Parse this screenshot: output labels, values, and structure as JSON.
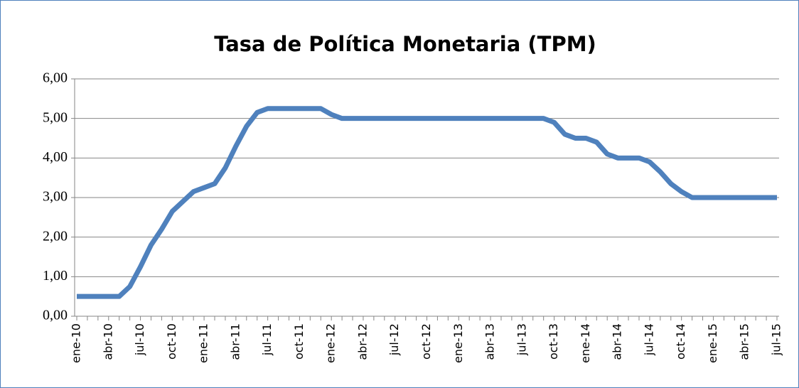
{
  "chart_data": {
    "type": "line",
    "title": "Tasa de Política Monetaria (TPM)",
    "categories": [
      "ene-10",
      null,
      null,
      "abr-10",
      null,
      null,
      "jul-10",
      null,
      null,
      "oct-10",
      null,
      null,
      "ene-11",
      null,
      null,
      "abr-11",
      null,
      null,
      "jul-11",
      null,
      null,
      "oct-11",
      null,
      null,
      "ene-12",
      null,
      null,
      "abr-12",
      null,
      null,
      "jul-12",
      null,
      null,
      "oct-12",
      null,
      null,
      "ene-13",
      null,
      null,
      "abr-13",
      null,
      null,
      "jul-13",
      null,
      null,
      "oct-13",
      null,
      null,
      "ene-14",
      null,
      null,
      "abr-14",
      null,
      null,
      "jul-14",
      null,
      null,
      "oct-14",
      null,
      null,
      "ene-15",
      null,
      null,
      "abr-15",
      null,
      null,
      "jul-15"
    ],
    "values": [
      0.5,
      0.5,
      0.5,
      0.5,
      0.5,
      0.75,
      1.25,
      1.8,
      2.2,
      2.65,
      2.9,
      3.15,
      3.25,
      3.35,
      3.75,
      4.3,
      4.8,
      5.15,
      5.25,
      5.25,
      5.25,
      5.25,
      5.25,
      5.25,
      5.1,
      5.0,
      5.0,
      5.0,
      5.0,
      5.0,
      5.0,
      5.0,
      5.0,
      5.0,
      5.0,
      5.0,
      5.0,
      5.0,
      5.0,
      5.0,
      5.0,
      5.0,
      5.0,
      5.0,
      5.0,
      4.9,
      4.6,
      4.5,
      4.5,
      4.4,
      4.1,
      4.0,
      4.0,
      4.0,
      3.9,
      3.65,
      3.35,
      3.15,
      3.0,
      3.0,
      3.0,
      3.0,
      3.0,
      3.0,
      3.0,
      3.0,
      3.0
    ],
    "color": "#4f81bd",
    "ylim": [
      0,
      6
    ],
    "yticks": [
      {
        "value": 0,
        "label": "0,00"
      },
      {
        "value": 1,
        "label": "1,00"
      },
      {
        "value": 2,
        "label": "2,00"
      },
      {
        "value": 3,
        "label": "3,00"
      },
      {
        "value": 4,
        "label": "4,00"
      },
      {
        "value": 5,
        "label": "5,00"
      },
      {
        "value": 6,
        "label": "6,00"
      }
    ],
    "grid": true
  }
}
